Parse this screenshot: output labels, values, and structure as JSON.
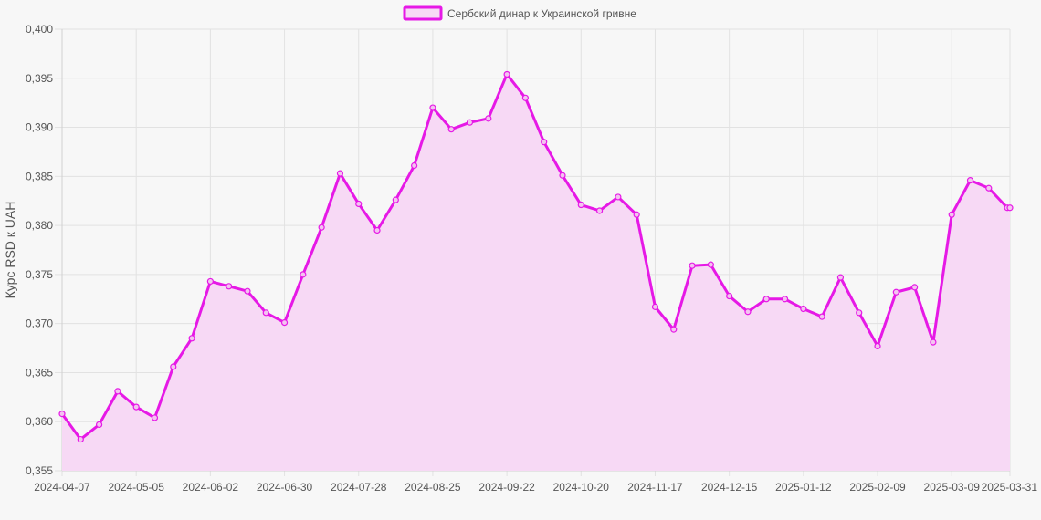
{
  "chart_data": {
    "type": "line",
    "title": "",
    "xlabel": "",
    "ylabel": "Курс RSD к UAH",
    "legend": {
      "position": "top-center"
    },
    "grid": true,
    "ylim": [
      0.355,
      0.4
    ],
    "y_ticks": [
      "0,355",
      "0,360",
      "0,365",
      "0,370",
      "0,375",
      "0,380",
      "0,385",
      "0,390",
      "0,395",
      "0,400"
    ],
    "x_tick_labels": [
      "2024-04-07",
      "2024-05-05",
      "2024-06-02",
      "2024-06-30",
      "2024-07-28",
      "2024-08-25",
      "2024-09-22",
      "2024-10-20",
      "2024-11-17",
      "2024-12-15",
      "2025-01-12",
      "2025-02-09",
      "2025-03-09",
      "2025-03-31"
    ],
    "colors": {
      "line": "#e619e6",
      "fill": "#f7d9f5",
      "grid": "#e2e2e2"
    },
    "series": [
      {
        "name": "Сербский динар к Украинской гривне",
        "points": [
          [
            "2024-04-07",
            0.3608
          ],
          [
            "2024-04-14",
            0.3582
          ],
          [
            "2024-04-21",
            0.3597
          ],
          [
            "2024-04-28",
            0.3631
          ],
          [
            "2024-05-05",
            0.3615
          ],
          [
            "2024-05-12",
            0.3604
          ],
          [
            "2024-05-19",
            0.3656
          ],
          [
            "2024-05-26",
            0.3685
          ],
          [
            "2024-06-02",
            0.3743
          ],
          [
            "2024-06-09",
            0.3738
          ],
          [
            "2024-06-16",
            0.3733
          ],
          [
            "2024-06-23",
            0.3711
          ],
          [
            "2024-06-30",
            0.3701
          ],
          [
            "2024-07-07",
            0.375
          ],
          [
            "2024-07-14",
            0.3798
          ],
          [
            "2024-07-21",
            0.3853
          ],
          [
            "2024-07-28",
            0.3822
          ],
          [
            "2024-08-04",
            0.3795
          ],
          [
            "2024-08-11",
            0.3826
          ],
          [
            "2024-08-18",
            0.3861
          ],
          [
            "2024-08-25",
            0.392
          ],
          [
            "2024-09-01",
            0.3898
          ],
          [
            "2024-09-08",
            0.3905
          ],
          [
            "2024-09-15",
            0.3909
          ],
          [
            "2024-09-22",
            0.3954
          ],
          [
            "2024-09-29",
            0.393
          ],
          [
            "2024-10-06",
            0.3885
          ],
          [
            "2024-10-13",
            0.3851
          ],
          [
            "2024-10-20",
            0.3821
          ],
          [
            "2024-10-27",
            0.3815
          ],
          [
            "2024-11-03",
            0.3829
          ],
          [
            "2024-11-10",
            0.3811
          ],
          [
            "2024-11-17",
            0.3717
          ],
          [
            "2024-11-24",
            0.3694
          ],
          [
            "2024-12-01",
            0.3759
          ],
          [
            "2024-12-08",
            0.376
          ],
          [
            "2024-12-15",
            0.3728
          ],
          [
            "2024-12-22",
            0.3712
          ],
          [
            "2024-12-29",
            0.3725
          ],
          [
            "2025-01-05",
            0.3725
          ],
          [
            "2025-01-12",
            0.3715
          ],
          [
            "2025-01-19",
            0.3707
          ],
          [
            "2025-01-26",
            0.3747
          ],
          [
            "2025-02-02",
            0.3711
          ],
          [
            "2025-02-09",
            0.3677
          ],
          [
            "2025-02-16",
            0.3732
          ],
          [
            "2025-02-23",
            0.3737
          ],
          [
            "2025-03-02",
            0.3681
          ],
          [
            "2025-03-09",
            0.3811
          ],
          [
            "2025-03-16",
            0.3846
          ],
          [
            "2025-03-23",
            0.3838
          ],
          [
            "2025-03-30",
            0.3818
          ],
          [
            "2025-03-31",
            0.3818
          ]
        ]
      }
    ]
  }
}
